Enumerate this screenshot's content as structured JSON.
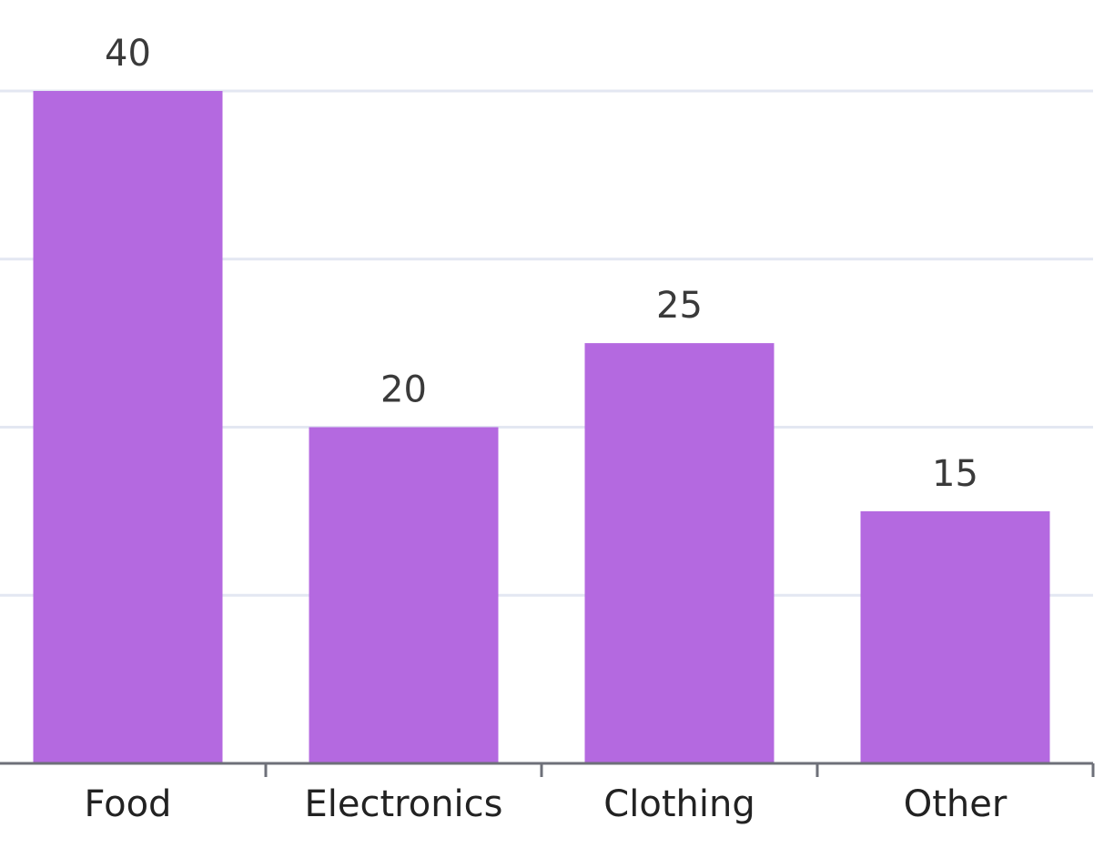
{
  "chart_data": {
    "type": "bar",
    "title": "",
    "xlabel": "",
    "ylabel": "",
    "categories": [
      "Food",
      "Electronics",
      "Clothing",
      "Other"
    ],
    "values": [
      40,
      20,
      25,
      15
    ],
    "ylim": [
      0,
      40
    ],
    "y_gridlines": [
      10,
      20,
      30,
      40
    ],
    "grid": true,
    "legend": "none",
    "data_labels": true,
    "bar_color": "#b469e0",
    "grid_color": "#e3e7f2",
    "axis_color": "#6e7079"
  }
}
